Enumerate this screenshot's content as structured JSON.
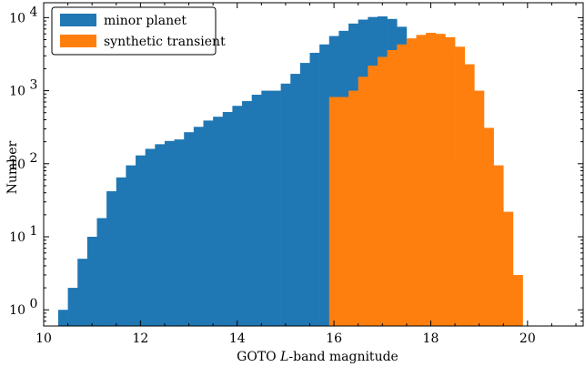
{
  "chart_data": {
    "type": "bar",
    "xlabel": "GOTO L-band magnitude",
    "ylabel": "Number",
    "xlim": [
      10.0,
      21.15
    ],
    "ylim": [
      0.6,
      16000
    ],
    "yscale": "log",
    "bin_width": 0.2,
    "xticks": [
      "10",
      "12",
      "14",
      "16",
      "18",
      "20"
    ],
    "yticks": [
      {
        "base": "10",
        "exp": "0"
      },
      {
        "base": "10",
        "exp": "1"
      },
      {
        "base": "10",
        "exp": "2"
      },
      {
        "base": "10",
        "exp": "3"
      },
      {
        "base": "10",
        "exp": "4"
      }
    ],
    "legend_position": "top-left",
    "series": [
      {
        "name": "minor planet",
        "color": "#1f77b4",
        "x_start": 10.3,
        "values": [
          1,
          2,
          5,
          10,
          18,
          42,
          65,
          95,
          130,
          160,
          185,
          205,
          215,
          270,
          320,
          390,
          440,
          510,
          620,
          720,
          880,
          1000,
          1000,
          1250,
          1700,
          2400,
          3300,
          4300,
          5600,
          6600,
          8300,
          9400,
          10200,
          10400,
          9600,
          7500,
          4900,
          2350,
          740,
          290,
          95,
          30,
          14,
          6,
          3
        ]
      },
      {
        "name": "synthetic transient",
        "color": "#ff7f0e",
        "x_start": 15.9,
        "values": [
          820,
          820,
          1000,
          1550,
          2200,
          2900,
          3600,
          4300,
          5200,
          5800,
          6200,
          6000,
          5400,
          4000,
          2300,
          1000,
          310,
          95,
          22,
          3
        ]
      }
    ]
  }
}
